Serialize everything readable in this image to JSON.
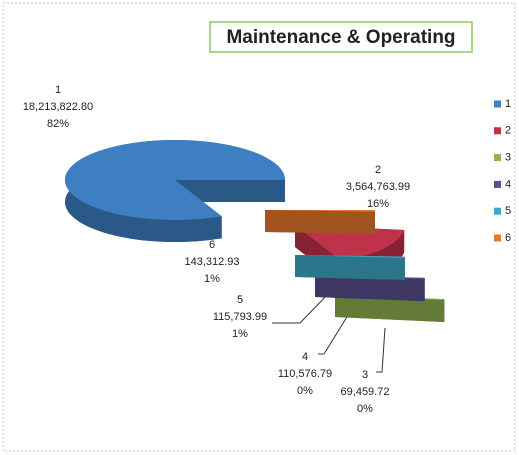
{
  "chart_data": {
    "type": "pie",
    "title": "Maintenance & Operating",
    "categories": [
      "1",
      "2",
      "3",
      "4",
      "5",
      "6"
    ],
    "values": [
      18213822.8,
      3564763.99,
      69459.72,
      110576.79,
      115793.99,
      143312.93
    ],
    "value_labels": [
      "18,213,822.80",
      "3,564,763.99",
      "69,459.72",
      "110,576.79",
      "115,793.99",
      "143,312.93"
    ],
    "percent_labels": [
      "82%",
      "16%",
      "0%",
      "0%",
      "1%",
      "1%"
    ],
    "colors": [
      "#3d7fc1",
      "#c0314a",
      "#8fb050",
      "#5a4f8e",
      "#3fa8c8",
      "#e8782e"
    ],
    "legend": "right"
  }
}
